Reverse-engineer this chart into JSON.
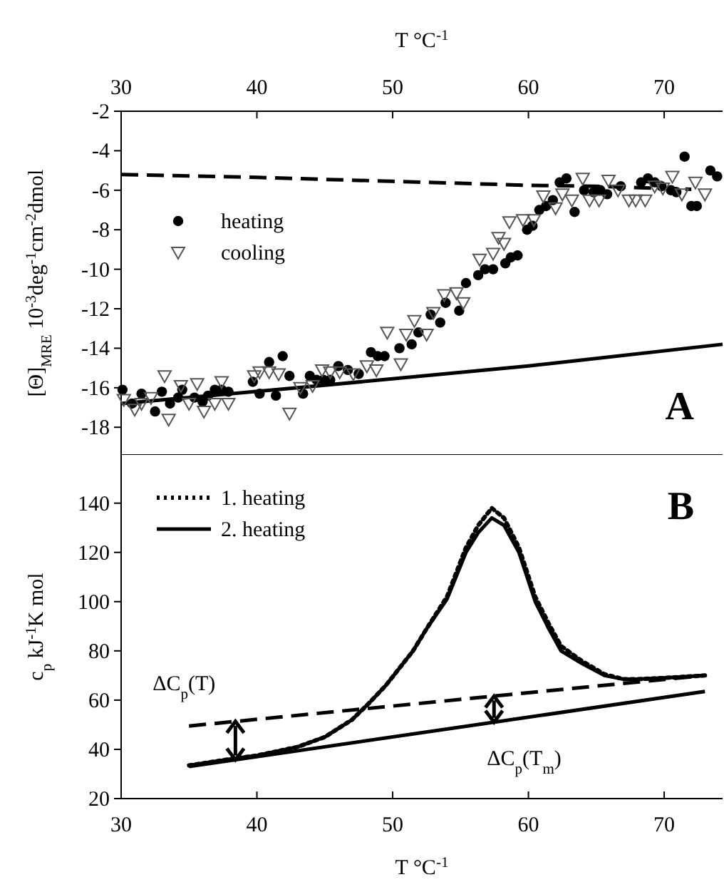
{
  "chart_data": [
    {
      "type": "scatter",
      "xlabel": "T °C$^{-1}$",
      "ylabel": "[Θ]$_{MRE}$ 10$^{-3}$deg$^{-1}$cm$^{-2}$dmol",
      "xlim": [
        30,
        74.3
      ],
      "xticks": [
        30,
        40,
        50,
        60,
        70
      ],
      "ylim": [
        -19.4,
        -2
      ],
      "yticks": [
        -2,
        -4,
        -6,
        -8,
        -10,
        -12,
        -14,
        -16,
        -18
      ],
      "legend": "top left",
      "annotations": [
        "A"
      ],
      "series": [
        {
          "name": "heating",
          "marker": "circle",
          "color": "#000000",
          "x": [
            30.1,
            30.8,
            31.5,
            32.5,
            33.0,
            33.6,
            34.2,
            34.5,
            35.4,
            36.0,
            36.4,
            36.9,
            37.4,
            37.9,
            39.7,
            40.2,
            40.9,
            41.4,
            41.9,
            42.4,
            43.4,
            43.9,
            44.4,
            44.9,
            45.4,
            46.0,
            46.7,
            47.5,
            48.4,
            48.9,
            49.4,
            50.5,
            51.4,
            51.9,
            52.8,
            53.5,
            53.9,
            54.9,
            55.4,
            56.3,
            56.8,
            57.4,
            58.3,
            58.7,
            59.2,
            59.9,
            60.3,
            60.8,
            61.3,
            61.8,
            62.3,
            62.8,
            63.4,
            64.1,
            64.8,
            65.3,
            65.8,
            66.8,
            68.3,
            68.8,
            69.3,
            69.8,
            70.5,
            70.9,
            71.5,
            72.0,
            72.4,
            73.4,
            73.9
          ],
          "values": [
            -16.1,
            -16.8,
            -16.3,
            -17.2,
            -16.2,
            -16.8,
            -16.5,
            -16.1,
            -16.5,
            -16.7,
            -16.4,
            -16.1,
            -16.1,
            -16.2,
            -15.7,
            -16.3,
            -14.7,
            -16.4,
            -14.4,
            -15.4,
            -16.3,
            -15.4,
            -15.6,
            -15.6,
            -15.6,
            -14.9,
            -15.1,
            -15.3,
            -14.2,
            -14.4,
            -14.4,
            -14.0,
            -13.8,
            -13.2,
            -12.3,
            -12.7,
            -11.7,
            -12.1,
            -10.7,
            -10.3,
            -10.0,
            -10.0,
            -9.7,
            -9.4,
            -9.3,
            -8.0,
            -7.8,
            -7.0,
            -6.8,
            -6.5,
            -5.6,
            -5.4,
            -7.1,
            -6.0,
            -6.1,
            -6.0,
            -6.2,
            -5.8,
            -5.6,
            -5.4,
            -5.6,
            -5.8,
            -6.0,
            -6.1,
            -4.3,
            -6.8,
            -6.8,
            -5.0,
            -5.3
          ]
        },
        {
          "name": "cooling",
          "marker": "triangle",
          "color": "#555555",
          "x": [
            30.2,
            31.0,
            31.5,
            32.2,
            33.2,
            33.5,
            34.4,
            35.0,
            35.6,
            36.1,
            36.9,
            37.4,
            37.9,
            39.8,
            40.2,
            40.9,
            41.6,
            42.4,
            43.2,
            44.1,
            44.8,
            45.4,
            46.1,
            47.1,
            48.1,
            48.8,
            49.6,
            50.6,
            51.0,
            51.6,
            52.5,
            53.0,
            53.8,
            54.7,
            55.2,
            56.4,
            57.4,
            57.8,
            58.2,
            58.6,
            59.6,
            60.4,
            61.1,
            62.0,
            62.5,
            63.2,
            64.0,
            64.5,
            65.2,
            65.9,
            66.6,
            67.4,
            67.9,
            68.6,
            69.3,
            69.9,
            70.6,
            71.3,
            72.3,
            73.0
          ],
          "values": [
            -16.6,
            -17.1,
            -16.8,
            -16.5,
            -15.4,
            -17.6,
            -15.9,
            -16.8,
            -15.8,
            -17.2,
            -16.8,
            -15.7,
            -16.8,
            -15.4,
            -15.2,
            -15.2,
            -15.3,
            -17.3,
            -16.0,
            -15.9,
            -15.1,
            -15.2,
            -15.2,
            -15.3,
            -14.9,
            -15.1,
            -13.2,
            -14.8,
            -13.3,
            -12.6,
            -13.3,
            -12.2,
            -11.3,
            -11.2,
            -11.7,
            -9.5,
            -9.2,
            -8.4,
            -8.7,
            -7.6,
            -7.5,
            -7.5,
            -6.3,
            -6.9,
            -6.2,
            -6.5,
            -5.4,
            -6.5,
            -6.5,
            -5.5,
            -6.0,
            -6.5,
            -6.5,
            -6.5,
            -5.8,
            -5.9,
            -5.3,
            -6.2,
            -5.6,
            -6.2
          ]
        },
        {
          "type": "line",
          "line_style": "dashed",
          "color": "#000000",
          "x": [
            30,
            40,
            50,
            60,
            65,
            72
          ],
          "values": [
            -5.2,
            -5.35,
            -5.55,
            -5.75,
            -5.8,
            -5.95
          ]
        },
        {
          "type": "line",
          "line_style": "solid",
          "color": "#000000",
          "x": [
            30,
            43,
            60,
            74.3
          ],
          "values": [
            -16.8,
            -16.0,
            -14.9,
            -13.8
          ]
        }
      ]
    },
    {
      "type": "line",
      "xlabel": "T °C$^{-1}$",
      "ylabel": "c$_{p}$ kJ$^{-1}$K mol",
      "xlim": [
        30,
        74.3
      ],
      "xticks": [
        30,
        40,
        50,
        60,
        70
      ],
      "ylim": [
        20,
        159.6
      ],
      "yticks": [
        20,
        40,
        60,
        80,
        100,
        120,
        140
      ],
      "legend": "top left",
      "annotations": [
        "B",
        "ΔC$_{p}$(T)",
        "ΔC$_{p}$(T$_{m}$)"
      ],
      "series": [
        {
          "name": "1. heating",
          "line_style": "dotted",
          "color": "#000000",
          "x": [
            35,
            38,
            40,
            43,
            45,
            47,
            48.3,
            49.5,
            50.5,
            51.5,
            52.5,
            54,
            55.4,
            56.3,
            57.3,
            58.2,
            59.3,
            60.5,
            61.5,
            62.4,
            63.9,
            65.6,
            67,
            68,
            70,
            73
          ],
          "values": [
            33.5,
            36,
            37.5,
            41,
            45,
            52,
            59,
            66,
            73,
            80,
            89,
            102,
            122,
            131,
            138,
            134,
            122,
            102,
            91,
            82,
            76,
            70.5,
            68.5,
            68.5,
            69,
            70
          ]
        },
        {
          "name": "2. heating",
          "line_style": "solid",
          "color": "#000000",
          "x": [
            35,
            38,
            40,
            43,
            45,
            47,
            48.3,
            49.5,
            50.5,
            51.5,
            52.5,
            54,
            55.4,
            56.3,
            57.3,
            58.2,
            59.3,
            60.5,
            61.5,
            62.4,
            63.9,
            65.6,
            67,
            68,
            70,
            73
          ],
          "values": [
            33.5,
            36,
            37.5,
            41,
            45,
            52,
            59,
            66,
            73,
            80,
            89,
            101,
            120,
            128,
            134,
            131,
            120,
            100,
            89,
            80,
            75,
            70,
            68.5,
            68.5,
            69,
            70
          ]
        },
        {
          "line_style": "dashed",
          "color": "#000000",
          "x": [
            35,
            73
          ],
          "values": [
            49.5,
            70
          ]
        },
        {
          "line_style": "solid",
          "color": "#000000",
          "x": [
            35,
            73
          ],
          "values": [
            33,
            63.5
          ]
        }
      ]
    }
  ]
}
